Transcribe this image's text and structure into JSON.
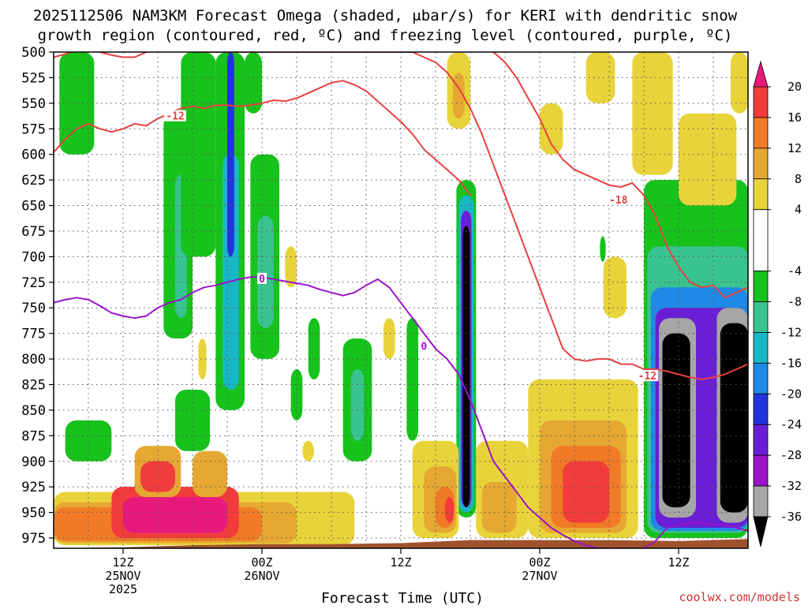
{
  "chart_data": {
    "type": "heatmap",
    "title_line1": "2025112506 NAM3KM Forecast Omega (shaded, μbar/s) for KERI with dendritic snow",
    "title_line2": "growth region (contoured, red, ºC) and freezing level (contoured, purple, ºC)",
    "xlabel": "Forecast Time (UTC)",
    "ylabel": "",
    "credit": "coolwx.com/models",
    "x_unit": "forecast hour",
    "xlim": [
      0,
      60
    ],
    "ylim": [
      500,
      985
    ],
    "y_ticks": [
      500,
      525,
      550,
      575,
      600,
      625,
      650,
      675,
      700,
      725,
      750,
      775,
      800,
      825,
      850,
      875,
      900,
      925,
      950,
      975
    ],
    "x_ticks": [
      {
        "hour": 6,
        "time": "12Z",
        "date": "25NOV",
        "year": "2025"
      },
      {
        "hour": 18,
        "time": "00Z",
        "date": "26NOV",
        "year": ""
      },
      {
        "hour": 30,
        "time": "12Z",
        "date": "",
        "year": ""
      },
      {
        "hour": 42,
        "time": "00Z",
        "date": "27NOV",
        "year": ""
      },
      {
        "hour": 54,
        "time": "12Z",
        "date": "",
        "year": ""
      }
    ],
    "x_grid_hours": [
      3,
      6,
      9,
      12,
      15,
      18,
      21,
      24,
      27,
      30,
      33,
      36,
      39,
      42,
      45,
      48,
      51,
      54,
      57
    ],
    "colorbar": {
      "min": -40,
      "max": 24,
      "labels": [
        20,
        16,
        12,
        8,
        4,
        -4,
        -8,
        -12,
        -16,
        -20,
        -24,
        -28,
        -32,
        -36
      ],
      "bins": [
        {
          "lo": 20,
          "hi": 24,
          "color": "#e8197d"
        },
        {
          "lo": 16,
          "hi": 20,
          "color": "#f23c3c"
        },
        {
          "lo": 12,
          "hi": 16,
          "color": "#f07a26"
        },
        {
          "lo": 8,
          "hi": 12,
          "color": "#e6a832"
        },
        {
          "lo": 4,
          "hi": 8,
          "color": "#e8d43a"
        },
        {
          "lo": -4,
          "hi": 4,
          "color": "#ffffff"
        },
        {
          "lo": -8,
          "hi": -4,
          "color": "#16c21b"
        },
        {
          "lo": -12,
          "hi": -8,
          "color": "#39c38f"
        },
        {
          "lo": -16,
          "hi": -12,
          "color": "#18b7c7"
        },
        {
          "lo": -20,
          "hi": -16,
          "color": "#1f8ae6"
        },
        {
          "lo": -24,
          "hi": -20,
          "color": "#2233dd"
        },
        {
          "lo": -28,
          "hi": -24,
          "color": "#6a1fd6"
        },
        {
          "lo": -32,
          "hi": -28,
          "color": "#9b14c8"
        },
        {
          "lo": -36,
          "hi": -32,
          "color": "#a6a6a6"
        },
        {
          "lo": -40,
          "hi": -36,
          "color": "#000000"
        }
      ]
    },
    "omega_cells": [
      {
        "name": "ascent-early-upper",
        "t0": 0.5,
        "t1": 3.5,
        "p0": 500,
        "p1": 600,
        "v": -6
      },
      {
        "name": "ascent-column-a",
        "t0": 9.5,
        "t1": 12,
        "p0": 560,
        "p1": 780,
        "v": -6
      },
      {
        "name": "ascent-column-a-core",
        "t0": 10.5,
        "t1": 11.5,
        "p0": 620,
        "p1": 760,
        "v": -10
      },
      {
        "name": "ascent-column-b",
        "t0": 11,
        "t1": 14,
        "p0": 500,
        "p1": 700,
        "v": -6
      },
      {
        "name": "ascent-column-c",
        "t0": 14,
        "t1": 16.5,
        "p0": 500,
        "p1": 850,
        "v": -7
      },
      {
        "name": "ascent-column-c-core",
        "t0": 14.6,
        "t1": 16,
        "p0": 600,
        "p1": 830,
        "v": -13
      },
      {
        "name": "ascent-column-c-jet",
        "t0": 15,
        "t1": 15.6,
        "p0": 500,
        "p1": 700,
        "v": -22
      },
      {
        "name": "ascent-column-d",
        "t0": 16.5,
        "t1": 18,
        "p0": 500,
        "p1": 560,
        "v": -6
      },
      {
        "name": "ascent-mid-e",
        "t0": 17,
        "t1": 19.5,
        "p0": 600,
        "p1": 800,
        "v": -6
      },
      {
        "name": "ascent-mid-e-core",
        "t0": 17.6,
        "t1": 19,
        "p0": 660,
        "p1": 770,
        "v": -10
      },
      {
        "name": "ascent-low-f",
        "t0": 1,
        "t1": 5,
        "p0": 860,
        "p1": 900,
        "v": -6
      },
      {
        "name": "ascent-low-g",
        "t0": 10.5,
        "t1": 13.5,
        "p0": 830,
        "p1": 890,
        "v": -6
      },
      {
        "name": "ascent-low-h",
        "t0": 20.5,
        "t1": 21.5,
        "p0": 810,
        "p1": 860,
        "v": -6
      },
      {
        "name": "ascent-low-i",
        "t0": 22,
        "t1": 23,
        "p0": 760,
        "p1": 820,
        "v": -6
      },
      {
        "name": "ascent-mid-j",
        "t0": 25,
        "t1": 27.5,
        "p0": 780,
        "p1": 900,
        "v": -6
      },
      {
        "name": "ascent-mid-j-core",
        "t0": 25.7,
        "t1": 26.8,
        "p0": 810,
        "p1": 880,
        "v": -10
      },
      {
        "name": "ascent-mid-k",
        "t0": 30.5,
        "t1": 31.5,
        "p0": 760,
        "p1": 880,
        "v": -6
      },
      {
        "name": "ascent-jet-l",
        "t0": 34.8,
        "t1": 36.5,
        "p0": 625,
        "p1": 955,
        "v": -6
      },
      {
        "name": "ascent-jet-l-2",
        "t0": 35,
        "t1": 36.3,
        "p0": 640,
        "p1": 950,
        "v": -14
      },
      {
        "name": "ascent-jet-l-3",
        "t0": 35.2,
        "t1": 36.1,
        "p0": 655,
        "p1": 945,
        "v": -26
      },
      {
        "name": "ascent-jet-l-core",
        "t0": 35.35,
        "t1": 35.95,
        "p0": 670,
        "p1": 945,
        "v": -38
      },
      {
        "name": "ascent-small-m",
        "t0": 47.2,
        "t1": 47.7,
        "p0": 680,
        "p1": 705,
        "v": -6
      },
      {
        "name": "ascent-late-n",
        "t0": 51,
        "t1": 60,
        "p0": 625,
        "p1": 975,
        "v": -6
      },
      {
        "name": "ascent-late-n-2",
        "t0": 51.3,
        "t1": 60,
        "p0": 690,
        "p1": 970,
        "v": -12
      },
      {
        "name": "ascent-late-n-3",
        "t0": 51.6,
        "t1": 60,
        "p0": 730,
        "p1": 968,
        "v": -18
      },
      {
        "name": "ascent-late-n-4",
        "t0": 52,
        "t1": 60,
        "p0": 750,
        "p1": 965,
        "v": -26
      },
      {
        "name": "ascent-late-n-5",
        "t0": 52.3,
        "t1": 55.5,
        "p0": 760,
        "p1": 955,
        "v": -34
      },
      {
        "name": "ascent-late-core-1",
        "t0": 52.6,
        "t1": 55,
        "p0": 775,
        "p1": 945,
        "v": -38
      },
      {
        "name": "ascent-late-n-6",
        "t0": 57.3,
        "t1": 60,
        "p0": 750,
        "p1": 960,
        "v": -34
      },
      {
        "name": "ascent-late-core-2",
        "t0": 57.6,
        "t1": 60,
        "p0": 765,
        "p1": 950,
        "v": -38
      },
      {
        "name": "descent-upper-a",
        "t0": 34,
        "t1": 36,
        "p0": 500,
        "p1": 575,
        "v": 5
      },
      {
        "name": "descent-upper-a2",
        "t0": 34.5,
        "t1": 35.5,
        "p0": 520,
        "p1": 565,
        "v": 9
      },
      {
        "name": "descent-upper-b",
        "t0": 42,
        "t1": 44,
        "p0": 550,
        "p1": 600,
        "v": 5
      },
      {
        "name": "descent-upper-c",
        "t0": 46,
        "t1": 48.5,
        "p0": 500,
        "p1": 550,
        "v": 5
      },
      {
        "name": "descent-upper-d",
        "t0": 50,
        "t1": 53.5,
        "p0": 500,
        "p1": 620,
        "v": 5
      },
      {
        "name": "descent-upper-e",
        "t0": 54,
        "t1": 59,
        "p0": 560,
        "p1": 650,
        "v": 5
      },
      {
        "name": "descent-upper-f",
        "t0": 58.5,
        "t1": 60,
        "p0": 500,
        "p1": 560,
        "v": 5
      },
      {
        "name": "descent-mid-g",
        "t0": 47.5,
        "t1": 49.5,
        "p0": 700,
        "p1": 760,
        "v": 5
      },
      {
        "name": "descent-mid-h",
        "t0": 41,
        "t1": 50.5,
        "p0": 820,
        "p1": 975,
        "v": 5
      },
      {
        "name": "descent-mid-i",
        "t0": 42,
        "t1": 49.5,
        "p0": 860,
        "p1": 970,
        "v": 9
      },
      {
        "name": "descent-mid-i2",
        "t0": 43,
        "t1": 49,
        "p0": 885,
        "p1": 965,
        "v": 13
      },
      {
        "name": "descent-mid-i3",
        "t0": 44,
        "t1": 48,
        "p0": 900,
        "p1": 960,
        "v": 17
      },
      {
        "name": "descent-low-j",
        "t0": 31,
        "t1": 35,
        "p0": 880,
        "p1": 975,
        "v": 5
      },
      {
        "name": "descent-low-j2",
        "t0": 32,
        "t1": 34.8,
        "p0": 905,
        "p1": 970,
        "v": 9
      },
      {
        "name": "descent-low-j3",
        "t0": 33,
        "t1": 34.6,
        "p0": 925,
        "p1": 965,
        "v": 14
      },
      {
        "name": "descent-low-j4",
        "t0": 33.8,
        "t1": 34.6,
        "p0": 935,
        "p1": 960,
        "v": 18
      },
      {
        "name": "descent-low-k",
        "t0": 36.5,
        "t1": 41,
        "p0": 880,
        "p1": 975,
        "v": 5
      },
      {
        "name": "descent-low-k2",
        "t0": 37,
        "t1": 40,
        "p0": 920,
        "p1": 970,
        "v": 9
      },
      {
        "name": "descent-sfc-l",
        "t0": 0,
        "t1": 26,
        "p0": 930,
        "p1": 982,
        "v": 5
      },
      {
        "name": "descent-sfc-l2",
        "t0": 0,
        "t1": 21,
        "p0": 940,
        "p1": 980,
        "v": 9
      },
      {
        "name": "descent-sfc-l3",
        "t0": 0,
        "t1": 18,
        "p0": 945,
        "p1": 978,
        "v": 13
      },
      {
        "name": "descent-sfc-l4",
        "t0": 5,
        "t1": 16,
        "p0": 925,
        "p1": 975,
        "v": 17
      },
      {
        "name": "descent-sfc-l5",
        "t0": 6,
        "t1": 15,
        "p0": 935,
        "p1": 970,
        "v": 22
      },
      {
        "name": "descent-sfc-m",
        "t0": 7,
        "t1": 11,
        "p0": 885,
        "p1": 935,
        "v": 9
      },
      {
        "name": "descent-sfc-m2",
        "t0": 7.5,
        "t1": 10.5,
        "p0": 900,
        "p1": 930,
        "v": 17
      },
      {
        "name": "descent-sfc-m3",
        "t0": 12,
        "t1": 15,
        "p0": 890,
        "p1": 935,
        "v": 9
      },
      {
        "name": "descent-small-n",
        "t0": 20,
        "t1": 21,
        "p0": 690,
        "p1": 730,
        "v": 5
      },
      {
        "name": "descent-small-o",
        "t0": 12.5,
        "t1": 13.2,
        "p0": 780,
        "p1": 820,
        "v": 5
      },
      {
        "name": "descent-small-p",
        "t0": 21.5,
        "t1": 22.5,
        "p0": 880,
        "p1": 900,
        "v": 5
      },
      {
        "name": "descent-small-q",
        "t0": 28.5,
        "t1": 29.5,
        "p0": 760,
        "p1": 800,
        "v": 5
      }
    ],
    "terrain": {
      "color": "#a0522d",
      "label": "surface",
      "t": [
        0,
        6,
        12,
        18,
        24,
        30,
        36,
        42,
        48,
        54,
        60
      ],
      "p": [
        985,
        984,
        982,
        981,
        981,
        980,
        977,
        977,
        977,
        978,
        976
      ]
    },
    "contours": [
      {
        "name": "dgz-minus12-upper",
        "color": "#e84040",
        "t": [
          0,
          1,
          2,
          3,
          4,
          5,
          6,
          7,
          8,
          9,
          10,
          11,
          12,
          13,
          14,
          15,
          16,
          17,
          18,
          19,
          20,
          21,
          22,
          23,
          24,
          25,
          26,
          27,
          28,
          29,
          30,
          31,
          32,
          33,
          34,
          35,
          36
        ],
        "p": [
          598,
          585,
          575,
          570,
          575,
          578,
          575,
          570,
          572,
          565,
          560,
          555,
          553,
          555,
          552,
          552,
          553,
          552,
          550,
          547,
          548,
          545,
          540,
          535,
          530,
          528,
          532,
          538,
          548,
          558,
          568,
          580,
          595,
          605,
          615,
          625,
          640
        ]
      },
      {
        "name": "dgz-minus12-lower",
        "color": "#e84040",
        "t": [
          0,
          1,
          2,
          3,
          4,
          5,
          6,
          7,
          8,
          9,
          10,
          11,
          12,
          13,
          14,
          15,
          16,
          17,
          18,
          19,
          20,
          21,
          22,
          23,
          24,
          25,
          26,
          27,
          28,
          29,
          30,
          31,
          32,
          33,
          34,
          35,
          36,
          37,
          38,
          39,
          40,
          41,
          42,
          43,
          44,
          45,
          46,
          47,
          48,
          49,
          50,
          51,
          52,
          53,
          54,
          55,
          56,
          57,
          58,
          59,
          60
        ],
        "p": [
          505,
          502,
          498,
          497,
          500,
          503,
          505,
          505,
          500,
          498,
          496,
          497,
          499,
          500,
          500,
          500,
          500,
          500,
          500,
          500,
          500,
          500,
          500,
          500,
          500,
          500,
          500,
          500,
          500,
          500,
          500,
          500,
          505,
          510,
          520,
          535,
          555,
          580,
          610,
          640,
          670,
          700,
          730,
          760,
          790,
          800,
          802,
          800,
          800,
          805,
          805,
          810,
          810,
          812,
          815,
          818,
          820,
          818,
          815,
          810,
          805
        ]
      },
      {
        "name": "dgz-minus18",
        "color": "#e84040",
        "t": [
          38,
          39,
          40,
          41,
          42,
          43,
          44,
          45,
          46,
          47,
          48,
          49,
          50,
          51,
          52,
          53,
          54,
          55,
          56,
          57,
          58,
          59,
          60
        ],
        "p": [
          500,
          510,
          525,
          545,
          565,
          590,
          605,
          615,
          620,
          625,
          630,
          632,
          628,
          640,
          660,
          690,
          710,
          725,
          730,
          728,
          740,
          735,
          730
        ]
      },
      {
        "name": "freezing-level",
        "color": "#9b14c8",
        "t": [
          0,
          1,
          2,
          3,
          4,
          5,
          6,
          7,
          8,
          9,
          10,
          11,
          12,
          13,
          14,
          15,
          16,
          17,
          18,
          19,
          20,
          21,
          22,
          23,
          24,
          25,
          26,
          27,
          28,
          29,
          30,
          31,
          32,
          33,
          34,
          35,
          36,
          37,
          38,
          39,
          40,
          41,
          42,
          43,
          44,
          45,
          46,
          47,
          48,
          49,
          50,
          51,
          52,
          53,
          54,
          55,
          56,
          57,
          58,
          59,
          60
        ],
        "p": [
          745,
          742,
          740,
          742,
          748,
          755,
          758,
          760,
          758,
          750,
          745,
          742,
          735,
          730,
          728,
          725,
          722,
          720,
          720,
          722,
          724,
          726,
          728,
          732,
          735,
          738,
          735,
          728,
          722,
          730,
          745,
          760,
          775,
          790,
          800,
          815,
          840,
          870,
          900,
          915,
          930,
          945,
          955,
          965,
          972,
          978,
          982,
          985,
          985,
          985,
          985,
          985,
          978,
          965,
          962,
          960,
          960,
          962,
          962,
          965,
          968
        ]
      }
    ],
    "contour_labels": [
      {
        "text": "-12",
        "color": "#e84040",
        "t": 10.5,
        "p": 563
      },
      {
        "text": "-18",
        "color": "#e84040",
        "t": 48.8,
        "p": 645
      },
      {
        "text": "-12",
        "color": "#e84040",
        "t": 51.3,
        "p": 817
      },
      {
        "text": "0",
        "color": "#9b14c8",
        "t": 18,
        "p": 722
      },
      {
        "text": "0",
        "color": "#9b14c8",
        "t": 32,
        "p": 788
      }
    ]
  }
}
